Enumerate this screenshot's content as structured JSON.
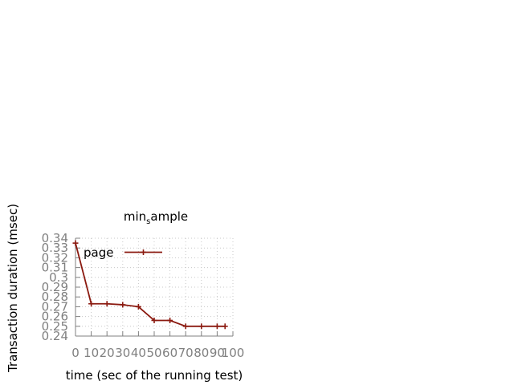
{
  "chart_data": {
    "type": "line",
    "title": "min_sample",
    "title_main": "min",
    "title_sub": "s",
    "title_tail": "ample",
    "xlabel": "time (sec of the running test)",
    "ylabel": "Transaction duration (msec)",
    "xlim": [
      0,
      100
    ],
    "ylim": [
      0.24,
      0.34
    ],
    "x_ticks": [
      0,
      10,
      20,
      30,
      40,
      50,
      60,
      70,
      80,
      90,
      100
    ],
    "x_tick_labels": [
      "0",
      "10",
      "20",
      "30",
      "40",
      "50",
      "60",
      "70",
      "80",
      "90",
      "100"
    ],
    "y_ticks": [
      0.24,
      0.25,
      0.26,
      0.27,
      0.28,
      0.29,
      0.3,
      0.31,
      0.32,
      0.33,
      0.34
    ],
    "y_tick_labels": [
      "0.24",
      "0.25",
      "0.26",
      "0.27",
      "0.28",
      "0.29",
      "0.3",
      "0.31",
      "0.32",
      "0.33",
      "0.34"
    ],
    "grid": true,
    "legend_position": "top-left",
    "series": [
      {
        "name": "page",
        "color": "#8b1a10",
        "marker": "plus",
        "x": [
          0,
          10,
          20,
          30,
          40,
          50,
          60,
          70,
          80,
          90,
          95
        ],
        "y": [
          0.335,
          0.273,
          0.273,
          0.272,
          0.27,
          0.256,
          0.256,
          0.25,
          0.25,
          0.25,
          0.25
        ]
      }
    ]
  }
}
